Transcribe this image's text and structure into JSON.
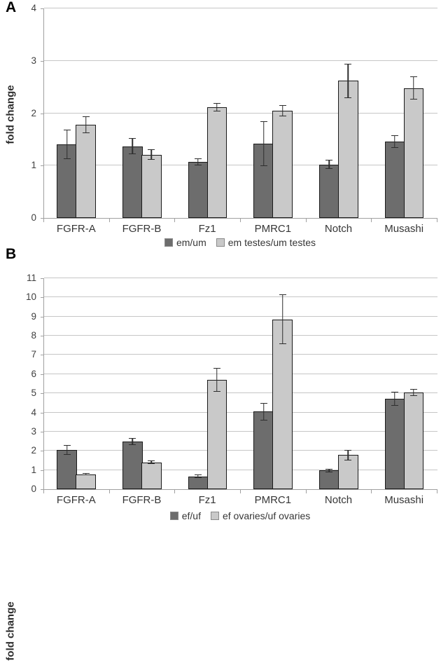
{
  "figure_title": "Two-panel qPCR fold-change bar chart",
  "styles": {
    "dark_series_color": "#6d6d6d",
    "light_series_color": "#c9c9c9",
    "bar_border_color": "#1a1a1a",
    "grid_color": "#c6c6c6",
    "axis_color": "#a0a0a0",
    "error_bar_color": "#2e2e2e",
    "background": "#ffffff"
  },
  "chart_data": [
    {
      "type": "bar",
      "panel_label": "A",
      "title": "",
      "xlabel": "",
      "ylabel": "fold change",
      "ylim": [
        0,
        4
      ],
      "ystep": 1,
      "grid": true,
      "legend_position": "bottom",
      "error_bars": true,
      "categories": [
        "FGFR-A",
        "FGFR-B",
        "Fz1",
        "PMRC1",
        "Notch",
        "Musashi"
      ],
      "series": [
        {
          "name": "em/um",
          "color_key": "dark_series_color",
          "values": [
            1.4,
            1.37,
            1.07,
            1.42,
            1.02,
            1.46
          ],
          "errors": [
            0.28,
            0.15,
            0.07,
            0.43,
            0.09,
            0.12
          ]
        },
        {
          "name": "em testes/um testes",
          "color_key": "light_series_color",
          "values": [
            1.78,
            1.21,
            2.12,
            2.05,
            2.62,
            2.48
          ],
          "errors": [
            0.16,
            0.1,
            0.08,
            0.11,
            0.33,
            0.22
          ]
        }
      ]
    },
    {
      "type": "bar",
      "panel_label": "B",
      "title": "",
      "xlabel": "",
      "ylabel": "fold change",
      "ylim": [
        0,
        11
      ],
      "ystep": 1,
      "grid": true,
      "legend_position": "bottom",
      "error_bars": true,
      "categories": [
        "FGFR-A",
        "FGFR-B",
        "Fz1",
        "PMRC1",
        "Notch",
        "Musashi"
      ],
      "series": [
        {
          "name": "ef/uf",
          "color_key": "dark_series_color",
          "values": [
            2.05,
            2.5,
            0.67,
            4.05,
            0.97,
            4.72
          ],
          "errors": [
            0.25,
            0.18,
            0.08,
            0.45,
            0.1,
            0.37
          ]
        },
        {
          "name": "ef ovaries/uf ovaries",
          "color_key": "light_series_color",
          "values": [
            0.78,
            1.4,
            5.7,
            8.85,
            1.78,
            5.05
          ],
          "errors": [
            0.05,
            0.1,
            0.62,
            1.3,
            0.28,
            0.18
          ]
        }
      ]
    }
  ]
}
